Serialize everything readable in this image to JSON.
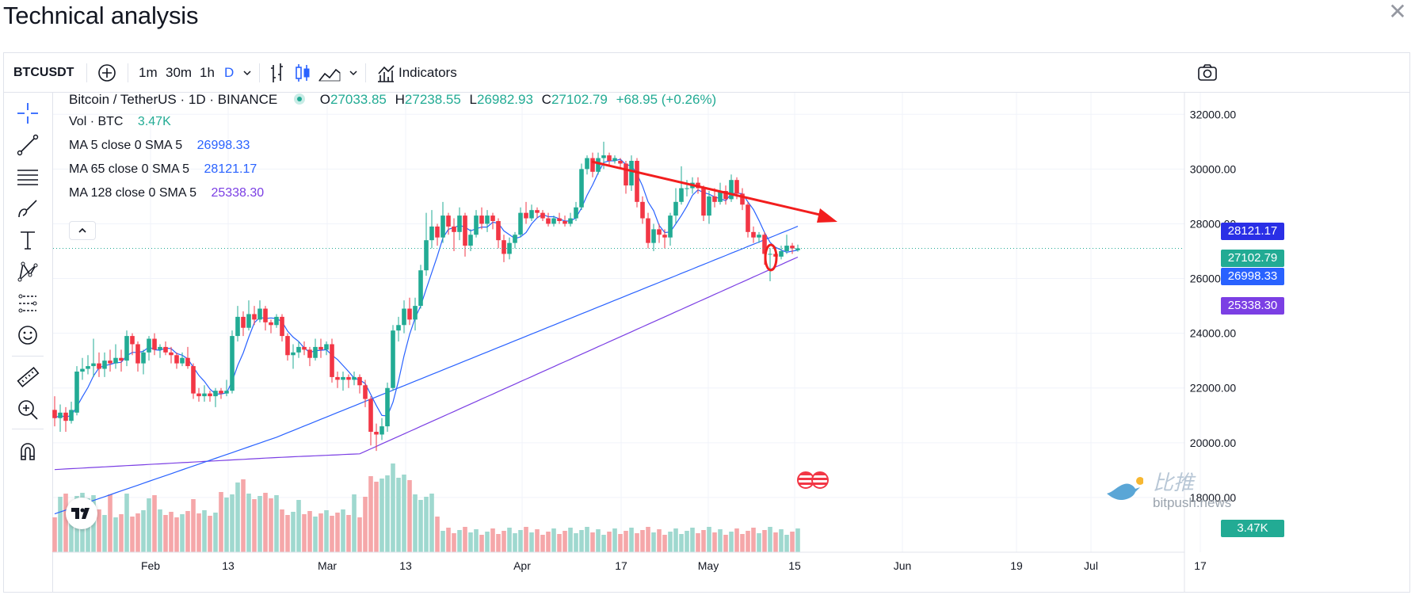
{
  "page": {
    "title": "Technical analysis"
  },
  "toolbar": {
    "symbol": "BTCUSDT",
    "intervals": [
      "1m",
      "30m",
      "1h",
      "D"
    ],
    "indicators_label": "Indicators"
  },
  "legend": {
    "pair": "Bitcoin / TetherUS · 1D · BINANCE",
    "ohlc": {
      "o_label": "O",
      "o": "27033.85",
      "h_label": "H",
      "h": "27238.55",
      "l_label": "L",
      "l": "26982.93",
      "c_label": "C",
      "c": "27102.79",
      "change": "+68.95 (+0.26%)"
    },
    "volume": {
      "label": "Vol · BTC",
      "value": "3.47K"
    },
    "ma": [
      {
        "label": "MA 5 close 0 SMA 5",
        "value": "26998.33",
        "color": "#2962ff"
      },
      {
        "label": "MA 65 close 0 SMA 5",
        "value": "28121.17",
        "color": "#2962ff"
      },
      {
        "label": "MA 128 close 0 SMA 5",
        "value": "25338.30",
        "color": "#7b3fe4"
      }
    ]
  },
  "price_tags": {
    "ma65": {
      "value": "28121.17",
      "color": "#2a2fe6"
    },
    "last": {
      "value": "27102.79",
      "color": "#22ab94"
    },
    "ma5": {
      "value": "26998.33",
      "color": "#2962ff"
    },
    "ma128": {
      "value": "25338.30",
      "color": "#7b3fe4"
    },
    "volume": {
      "value": "3.47K",
      "color": "#22ab94"
    }
  },
  "watermark": {
    "brand": "比推",
    "domain": "bitpush.news"
  },
  "colors": {
    "up": "#22ab94",
    "down": "#f23645",
    "up_volume": "#9fd8cf",
    "down_volume": "#f5a7a9",
    "ma_fast": "#2962ff",
    "ma_slow": "#7b3fe4",
    "annotation": "#f21e1e"
  },
  "chart_data": {
    "type": "candlestick",
    "y_axis": {
      "labels": [
        "32000.00",
        "30000.00",
        "28000.00",
        "26000.00",
        "24000.00",
        "22000.00",
        "20000.00",
        "18000.00"
      ],
      "ylim": [
        16000,
        32500
      ]
    },
    "x_axis": {
      "labels": [
        "Feb",
        "13",
        "Mar",
        "13",
        "Apr",
        "17",
        "May",
        "15",
        "Jun",
        "19",
        "Jul",
        "17"
      ]
    },
    "candles": [
      {
        "o": 21200,
        "c": 20900,
        "h": 21700,
        "l": 20600
      },
      {
        "o": 20900,
        "c": 21100,
        "h": 21400,
        "l": 20400
      },
      {
        "o": 21100,
        "c": 20800,
        "h": 21300,
        "l": 20400
      },
      {
        "o": 20800,
        "c": 21200,
        "h": 21500,
        "l": 20700
      },
      {
        "o": 21100,
        "c": 22600,
        "h": 22800,
        "l": 21000
      },
      {
        "o": 22600,
        "c": 22700,
        "h": 23100,
        "l": 22300
      },
      {
        "o": 22700,
        "c": 22800,
        "h": 23200,
        "l": 22500
      },
      {
        "o": 22800,
        "c": 22900,
        "h": 23800,
        "l": 22400
      },
      {
        "o": 22900,
        "c": 22700,
        "h": 23300,
        "l": 22400
      },
      {
        "o": 22700,
        "c": 23000,
        "h": 23300,
        "l": 22400
      },
      {
        "o": 23000,
        "c": 22900,
        "h": 23400,
        "l": 22600
      },
      {
        "o": 22900,
        "c": 23100,
        "h": 23600,
        "l": 22700
      },
      {
        "o": 23100,
        "c": 23000,
        "h": 23400,
        "l": 22600
      },
      {
        "o": 23000,
        "c": 23900,
        "h": 24100,
        "l": 22800
      },
      {
        "o": 23900,
        "c": 23600,
        "h": 24000,
        "l": 23200
      },
      {
        "o": 23600,
        "c": 22900,
        "h": 23700,
        "l": 22600
      },
      {
        "o": 22900,
        "c": 23300,
        "h": 23400,
        "l": 22500
      },
      {
        "o": 23300,
        "c": 23800,
        "h": 23900,
        "l": 23000
      },
      {
        "o": 23800,
        "c": 23400,
        "h": 24000,
        "l": 23200
      },
      {
        "o": 23400,
        "c": 23500,
        "h": 23600,
        "l": 23100
      },
      {
        "o": 23500,
        "c": 23300,
        "h": 23700,
        "l": 23200
      },
      {
        "o": 23300,
        "c": 23200,
        "h": 23500,
        "l": 22900
      },
      {
        "o": 23200,
        "c": 22900,
        "h": 23300,
        "l": 22700
      },
      {
        "o": 22900,
        "c": 23100,
        "h": 23300,
        "l": 22800
      },
      {
        "o": 23100,
        "c": 22800,
        "h": 23500,
        "l": 22700
      },
      {
        "o": 22800,
        "c": 21800,
        "h": 22900,
        "l": 21600
      },
      {
        "o": 21800,
        "c": 21700,
        "h": 22000,
        "l": 21500
      },
      {
        "o": 21700,
        "c": 21800,
        "h": 22100,
        "l": 21500
      },
      {
        "o": 21800,
        "c": 21700,
        "h": 21900,
        "l": 21500
      },
      {
        "o": 21700,
        "c": 21900,
        "h": 22000,
        "l": 21300
      },
      {
        "o": 21900,
        "c": 21800,
        "h": 22000,
        "l": 21600
      },
      {
        "o": 21800,
        "c": 21900,
        "h": 22300,
        "l": 21700
      },
      {
        "o": 21900,
        "c": 23900,
        "h": 24100,
        "l": 21800
      },
      {
        "o": 23900,
        "c": 24600,
        "h": 25000,
        "l": 23700
      },
      {
        "o": 24600,
        "c": 24200,
        "h": 24800,
        "l": 23900
      },
      {
        "o": 24200,
        "c": 24700,
        "h": 25200,
        "l": 24100
      },
      {
        "o": 24700,
        "c": 24500,
        "h": 25000,
        "l": 24300
      },
      {
        "o": 24500,
        "c": 24900,
        "h": 25200,
        "l": 24400
      },
      {
        "o": 24900,
        "c": 24400,
        "h": 25000,
        "l": 24100
      },
      {
        "o": 24400,
        "c": 24300,
        "h": 24500,
        "l": 24000
      },
      {
        "o": 24300,
        "c": 24600,
        "h": 24700,
        "l": 24200
      },
      {
        "o": 24600,
        "c": 23900,
        "h": 24700,
        "l": 23700
      },
      {
        "o": 23900,
        "c": 23200,
        "h": 24000,
        "l": 23000
      },
      {
        "o": 23200,
        "c": 23300,
        "h": 23600,
        "l": 22700
      },
      {
        "o": 23300,
        "c": 23500,
        "h": 23700,
        "l": 23100
      },
      {
        "o": 23500,
        "c": 23400,
        "h": 23700,
        "l": 23200
      },
      {
        "o": 23400,
        "c": 23100,
        "h": 23500,
        "l": 22800
      },
      {
        "o": 23100,
        "c": 23500,
        "h": 23800,
        "l": 23000
      },
      {
        "o": 23500,
        "c": 23400,
        "h": 23800,
        "l": 23100
      },
      {
        "o": 23400,
        "c": 23600,
        "h": 23700,
        "l": 23200
      },
      {
        "o": 23600,
        "c": 22400,
        "h": 23800,
        "l": 22200
      },
      {
        "o": 22400,
        "c": 22300,
        "h": 22600,
        "l": 22000
      },
      {
        "o": 22300,
        "c": 22400,
        "h": 22600,
        "l": 21900
      },
      {
        "o": 22400,
        "c": 22300,
        "h": 22500,
        "l": 22000
      },
      {
        "o": 22300,
        "c": 22400,
        "h": 22600,
        "l": 22100
      },
      {
        "o": 22400,
        "c": 22100,
        "h": 22500,
        "l": 21800
      },
      {
        "o": 22100,
        "c": 21600,
        "h": 22300,
        "l": 21300
      },
      {
        "o": 21600,
        "c": 20400,
        "h": 21700,
        "l": 19900
      },
      {
        "o": 20400,
        "c": 20300,
        "h": 20700,
        "l": 19700
      },
      {
        "o": 20300,
        "c": 20600,
        "h": 20900,
        "l": 20100
      },
      {
        "o": 20600,
        "c": 22000,
        "h": 22200,
        "l": 20400
      },
      {
        "o": 22000,
        "c": 24100,
        "h": 24300,
        "l": 21900
      },
      {
        "o": 24100,
        "c": 24300,
        "h": 24600,
        "l": 23700
      },
      {
        "o": 24300,
        "c": 24900,
        "h": 25200,
        "l": 24000
      },
      {
        "o": 24900,
        "c": 24500,
        "h": 25300,
        "l": 24300
      },
      {
        "o": 24500,
        "c": 25000,
        "h": 25300,
        "l": 24100
      },
      {
        "o": 25000,
        "c": 26300,
        "h": 26500,
        "l": 24900
      },
      {
        "o": 26300,
        "c": 27400,
        "h": 28400,
        "l": 26100
      },
      {
        "o": 27400,
        "c": 27900,
        "h": 28500,
        "l": 27100
      },
      {
        "o": 27900,
        "c": 27500,
        "h": 28000,
        "l": 27200
      },
      {
        "o": 27500,
        "c": 28300,
        "h": 28800,
        "l": 27300
      },
      {
        "o": 28300,
        "c": 27900,
        "h": 28400,
        "l": 27600
      },
      {
        "o": 27900,
        "c": 27700,
        "h": 28200,
        "l": 27000
      },
      {
        "o": 27700,
        "c": 28300,
        "h": 28600,
        "l": 27400
      },
      {
        "o": 28300,
        "c": 27200,
        "h": 28400,
        "l": 26800
      },
      {
        "o": 27200,
        "c": 27600,
        "h": 27800,
        "l": 27000
      },
      {
        "o": 27600,
        "c": 28300,
        "h": 28500,
        "l": 27500
      },
      {
        "o": 28300,
        "c": 28000,
        "h": 28600,
        "l": 27800
      },
      {
        "o": 28000,
        "c": 28300,
        "h": 28500,
        "l": 27700
      },
      {
        "o": 28300,
        "c": 28100,
        "h": 28400,
        "l": 27800
      },
      {
        "o": 28100,
        "c": 27400,
        "h": 28200,
        "l": 27100
      },
      {
        "o": 27400,
        "c": 26900,
        "h": 27600,
        "l": 26600
      },
      {
        "o": 26900,
        "c": 27300,
        "h": 27500,
        "l": 26700
      },
      {
        "o": 27300,
        "c": 27600,
        "h": 27700,
        "l": 27100
      },
      {
        "o": 27600,
        "c": 28400,
        "h": 28600,
        "l": 27500
      },
      {
        "o": 28400,
        "c": 28200,
        "h": 28800,
        "l": 28000
      },
      {
        "o": 28200,
        "c": 28500,
        "h": 28700,
        "l": 28100
      },
      {
        "o": 28500,
        "c": 28400,
        "h": 28600,
        "l": 28200
      },
      {
        "o": 28400,
        "c": 28200,
        "h": 28500,
        "l": 28100
      },
      {
        "o": 28200,
        "c": 28000,
        "h": 28400,
        "l": 27900
      },
      {
        "o": 28000,
        "c": 28200,
        "h": 28300,
        "l": 27900
      },
      {
        "o": 28200,
        "c": 28100,
        "h": 28400,
        "l": 28000
      },
      {
        "o": 28100,
        "c": 28000,
        "h": 28300,
        "l": 27900
      },
      {
        "o": 28000,
        "c": 28200,
        "h": 28400,
        "l": 27900
      },
      {
        "o": 28200,
        "c": 28600,
        "h": 28800,
        "l": 28100
      },
      {
        "o": 28600,
        "c": 30000,
        "h": 30200,
        "l": 28500
      },
      {
        "o": 30000,
        "c": 30400,
        "h": 30500,
        "l": 29800
      },
      {
        "o": 30400,
        "c": 29900,
        "h": 30600,
        "l": 29700
      },
      {
        "o": 29900,
        "c": 30400,
        "h": 30600,
        "l": 29800
      },
      {
        "o": 30400,
        "c": 30500,
        "h": 31000,
        "l": 30000
      },
      {
        "o": 30500,
        "c": 30300,
        "h": 30600,
        "l": 30100
      },
      {
        "o": 30300,
        "c": 30400,
        "h": 30500,
        "l": 30200
      },
      {
        "o": 30300,
        "c": 30200,
        "h": 30400,
        "l": 30000
      },
      {
        "o": 30200,
        "c": 29400,
        "h": 30300,
        "l": 29100
      },
      {
        "o": 29400,
        "c": 30300,
        "h": 30500,
        "l": 29200
      },
      {
        "o": 30300,
        "c": 28800,
        "h": 30400,
        "l": 28600
      },
      {
        "o": 28800,
        "c": 28200,
        "h": 29000,
        "l": 28000
      },
      {
        "o": 28200,
        "c": 27300,
        "h": 28400,
        "l": 27100
      },
      {
        "o": 27300,
        "c": 27800,
        "h": 28000,
        "l": 27000
      },
      {
        "o": 27800,
        "c": 27600,
        "h": 28000,
        "l": 27300
      },
      {
        "o": 27600,
        "c": 27500,
        "h": 27800,
        "l": 27100
      },
      {
        "o": 27500,
        "c": 28300,
        "h": 28400,
        "l": 27200
      },
      {
        "o": 28300,
        "c": 28800,
        "h": 29300,
        "l": 28000
      },
      {
        "o": 28800,
        "c": 29300,
        "h": 30100,
        "l": 28700
      },
      {
        "o": 29300,
        "c": 29300,
        "h": 29600,
        "l": 29000
      },
      {
        "o": 29300,
        "c": 29500,
        "h": 29700,
        "l": 29100
      },
      {
        "o": 29500,
        "c": 29300,
        "h": 29700,
        "l": 29100
      },
      {
        "o": 29300,
        "c": 28300,
        "h": 29400,
        "l": 28100
      },
      {
        "o": 28300,
        "c": 29000,
        "h": 29200,
        "l": 28000
      },
      {
        "o": 29000,
        "c": 28800,
        "h": 29300,
        "l": 28600
      },
      {
        "o": 28800,
        "c": 29200,
        "h": 29500,
        "l": 28700
      },
      {
        "o": 29200,
        "c": 28900,
        "h": 29400,
        "l": 28700
      },
      {
        "o": 28900,
        "c": 29600,
        "h": 29800,
        "l": 28800
      },
      {
        "o": 29600,
        "c": 29100,
        "h": 29700,
        "l": 28900
      },
      {
        "o": 29100,
        "c": 28700,
        "h": 29300,
        "l": 28500
      },
      {
        "o": 28700,
        "c": 27700,
        "h": 28800,
        "l": 27500
      },
      {
        "o": 27700,
        "c": 27500,
        "h": 27900,
        "l": 27300
      },
      {
        "o": 27500,
        "c": 27600,
        "h": 27700,
        "l": 27300
      },
      {
        "o": 27600,
        "c": 26900,
        "h": 27700,
        "l": 26500
      },
      {
        "o": 26900,
        "c": 26900,
        "h": 27100,
        "l": 25900
      },
      {
        "o": 26900,
        "c": 26800,
        "h": 27000,
        "l": 26600
      },
      {
        "o": 26800,
        "c": 27000,
        "h": 27200,
        "l": 26700
      },
      {
        "o": 27000,
        "c": 27200,
        "h": 27600,
        "l": 26900
      },
      {
        "o": 27200,
        "c": 27100,
        "h": 27300,
        "l": 26900
      },
      {
        "o": 27033.85,
        "c": 27102.79,
        "h": 27238.55,
        "l": 26982.93
      }
    ],
    "volume": [
      2,
      3,
      3,
      2,
      3,
      3,
      3,
      3,
      2,
      2,
      3,
      2,
      2,
      3,
      2,
      2,
      2,
      3,
      3,
      2,
      2,
      2,
      2,
      2,
      2,
      3,
      2,
      2,
      2,
      2,
      3,
      3,
      3,
      4,
      4,
      3,
      3,
      3,
      3,
      3,
      3,
      2,
      2,
      2,
      3,
      2,
      2,
      2,
      2,
      2,
      2,
      2,
      2,
      2,
      3,
      2,
      3,
      4,
      4,
      4,
      4,
      5,
      4,
      4,
      4,
      3,
      3,
      3,
      3,
      2,
      1,
      1,
      1,
      1,
      1,
      1,
      1,
      1,
      1,
      1,
      1,
      1,
      1,
      1,
      1,
      1,
      1,
      1,
      1,
      1,
      1,
      1,
      1,
      1,
      1,
      1,
      1,
      1,
      1,
      1,
      1,
      1,
      1,
      1,
      1,
      1,
      1,
      1,
      1,
      1,
      1,
      1,
      1,
      1,
      1,
      1,
      1,
      1,
      1,
      1,
      1,
      1,
      1,
      1,
      1,
      1,
      1,
      1,
      1,
      1,
      1,
      1,
      1,
      1,
      1,
      1,
      1,
      1,
      1,
      1
    ],
    "series": [
      {
        "name": "MA 5 close 0 SMA 5"
      },
      {
        "name": "MA 65 close 0 SMA 5"
      },
      {
        "name": "MA 128 close 0 SMA 5"
      }
    ]
  }
}
